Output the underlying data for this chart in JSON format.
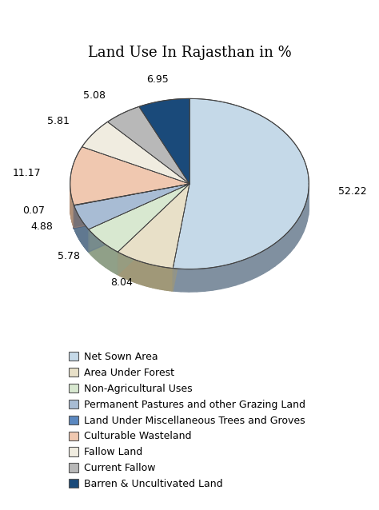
{
  "title": "Land Use In Rajasthan in %",
  "labels": [
    "Net Sown Area",
    "Area Under Forest",
    "Non-Agricultural Uses",
    "Permanent Pastures and other Grazing Land",
    "Land Under Miscellaneous Trees and Groves",
    "Culturable Wasteland",
    "Fallow Land",
    "Current Fallow",
    "Barren & Uncultivated Land"
  ],
  "values": [
    52.22,
    8.04,
    5.78,
    4.88,
    0.07,
    11.17,
    5.81,
    5.08,
    6.95
  ],
  "colors": [
    "#c5d9e8",
    "#e8e0c8",
    "#d8e8d0",
    "#a8bcd4",
    "#5b88c0",
    "#f0c8b0",
    "#f0ece0",
    "#b8b8b8",
    "#1a4a7a"
  ],
  "dark_colors": [
    "#8090a0",
    "#a09878",
    "#90a088",
    "#607890",
    "#304870",
    "#b09078",
    "#b0a890",
    "#787878",
    "#0a2040"
  ],
  "startangle": 90,
  "title_fontsize": 13,
  "legend_fontsize": 9,
  "label_fontsize": 9
}
